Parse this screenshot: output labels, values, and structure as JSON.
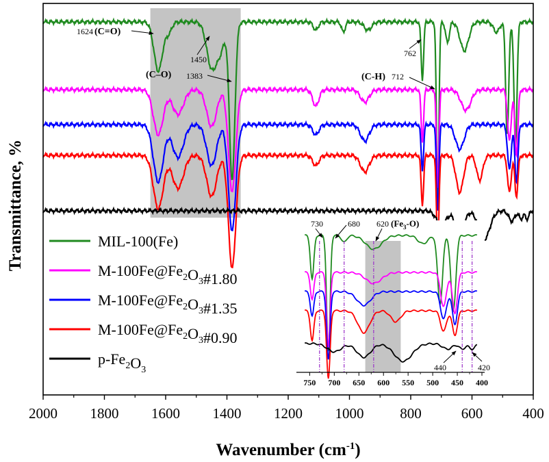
{
  "chart_data": {
    "type": "line",
    "title": "",
    "xlabel_main": "Wavenumber (cm",
    "xlabel_sup": "-1",
    "xlabel_close": ")",
    "ylabel": "Transmittance, %",
    "xlim": [
      2000,
      400
    ],
    "xticks": [
      2000,
      1800,
      1600,
      1400,
      1200,
      1000,
      800,
      600,
      400
    ],
    "shaded_region": [
      1650,
      1355
    ],
    "legend": [
      {
        "key": "mil",
        "color": "#1f8a1f",
        "parts": [
          {
            "t": "MIL-100(Fe)"
          }
        ]
      },
      {
        "key": "m180",
        "color": "#ff00ff",
        "parts": [
          {
            "t": "M-100Fe@Fe"
          },
          {
            "t": "2",
            "sub": true
          },
          {
            "t": "O"
          },
          {
            "t": "3",
            "sub": true
          },
          {
            "t": "#1.80"
          }
        ]
      },
      {
        "key": "m135",
        "color": "#0000ff",
        "parts": [
          {
            "t": "M-100Fe@Fe"
          },
          {
            "t": "2",
            "sub": true
          },
          {
            "t": "O"
          },
          {
            "t": "3",
            "sub": true
          },
          {
            "t": "#1.35"
          }
        ]
      },
      {
        "key": "m090",
        "color": "#ff0000",
        "parts": [
          {
            "t": "M-100Fe@Fe"
          },
          {
            "t": "2",
            "sub": true
          },
          {
            "t": "O"
          },
          {
            "t": "3",
            "sub": true
          },
          {
            "t": "#0.90"
          }
        ]
      },
      {
        "key": "pfe",
        "color": "#000000",
        "parts": [
          {
            "t": "p-Fe"
          },
          {
            "t": "2",
            "sub": true
          },
          {
            "t": "O"
          },
          {
            "t": "3",
            "sub": true
          }
        ]
      }
    ],
    "series": [
      {
        "key": "mil",
        "name": "MIL-100(Fe)",
        "color": "#1f8a1f",
        "baseline": 0.95,
        "peaks": [
          [
            1624,
            0.24,
            14
          ],
          [
            1590,
            0.05,
            10
          ],
          [
            1450,
            0.22,
            16
          ],
          [
            1383,
            0.77,
            9
          ],
          [
            1420,
            0.12,
            14
          ],
          [
            1110,
            0.04,
            8
          ],
          [
            1020,
            0.05,
            6
          ],
          [
            940,
            0.04,
            12
          ],
          [
            762,
            0.28,
            4
          ],
          [
            712,
            0.85,
            4
          ],
          [
            680,
            0.1,
            6
          ],
          [
            625,
            0.14,
            14
          ],
          [
            520,
            0.05,
            10
          ],
          [
            485,
            0.55,
            5
          ],
          [
            458,
            0.6,
            5
          ]
        ]
      },
      {
        "key": "m180",
        "name": "M-100Fe@Fe2O3#1.80",
        "color": "#ff00ff",
        "baseline": 0.62,
        "peaks": [
          [
            1624,
            0.22,
            16
          ],
          [
            1560,
            0.12,
            18
          ],
          [
            1450,
            0.18,
            16
          ],
          [
            1383,
            0.5,
            12
          ],
          [
            1110,
            0.08,
            10
          ],
          [
            950,
            0.06,
            14
          ],
          [
            762,
            0.25,
            4
          ],
          [
            712,
            0.48,
            4
          ],
          [
            620,
            0.1,
            16
          ],
          [
            478,
            0.25,
            6
          ],
          [
            455,
            0.32,
            5
          ]
        ]
      },
      {
        "key": "m135",
        "name": "M-100Fe@Fe2O3#1.35",
        "color": "#0000ff",
        "baseline": 0.45,
        "peaks": [
          [
            1624,
            0.28,
            16
          ],
          [
            1560,
            0.16,
            18
          ],
          [
            1450,
            0.2,
            16
          ],
          [
            1383,
            0.52,
            12
          ],
          [
            1110,
            0.05,
            10
          ],
          [
            950,
            0.08,
            14
          ],
          [
            762,
            0.22,
            4
          ],
          [
            712,
            0.42,
            4
          ],
          [
            640,
            0.12,
            14
          ],
          [
            478,
            0.22,
            6
          ],
          [
            455,
            0.28,
            5
          ]
        ]
      },
      {
        "key": "m090",
        "name": "M-100Fe@Fe2O3#0.90",
        "color": "#ff0000",
        "baseline": 0.3,
        "peaks": [
          [
            1624,
            0.26,
            16
          ],
          [
            1560,
            0.16,
            18
          ],
          [
            1450,
            0.2,
            16
          ],
          [
            1383,
            0.55,
            12
          ],
          [
            1110,
            0.05,
            10
          ],
          [
            950,
            0.08,
            14
          ],
          [
            762,
            0.24,
            4
          ],
          [
            712,
            0.45,
            4
          ],
          [
            640,
            0.18,
            12
          ],
          [
            575,
            0.12,
            10
          ],
          [
            478,
            0.18,
            6
          ],
          [
            455,
            0.2,
            5
          ]
        ]
      },
      {
        "key": "pfe",
        "name": "p-Fe2O3",
        "color": "#000000",
        "baseline": 0.03,
        "peaks": [
          [
            700,
            0.07,
            16
          ],
          [
            640,
            0.12,
            14
          ],
          [
            560,
            0.14,
            18
          ],
          [
            470,
            0.05,
            10
          ],
          [
            440,
            0.04,
            6
          ],
          [
            420,
            0.04,
            6
          ]
        ]
      }
    ],
    "annotations": [
      {
        "label": "1624",
        "bold": "(C=O)"
      },
      {
        "label": "1450",
        "bold": ""
      },
      {
        "label": "1383",
        "bold": "(C–O)"
      },
      {
        "label": "762",
        "bold": ""
      },
      {
        "label": "712",
        "bold": "(C-H)"
      }
    ],
    "inset": {
      "xlim": [
        770,
        400
      ],
      "xticks": [
        750,
        700,
        650,
        600,
        550,
        500,
        450,
        400
      ],
      "shaded_region": [
        637,
        565
      ],
      "dashed_lines": [
        730,
        680,
        620,
        440,
        420
      ],
      "annotations": [
        {
          "label": "730",
          "bold": ""
        },
        {
          "label": "680",
          "bold": ""
        },
        {
          "label": "620",
          "bold": "(Fe",
          "bold_sub": "3",
          "bold_tail": "-O)"
        },
        {
          "label": "440",
          "bold": ""
        },
        {
          "label": "420",
          "bold": ""
        }
      ]
    }
  }
}
